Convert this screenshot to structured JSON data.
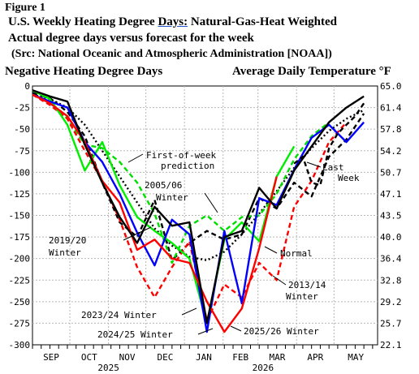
{
  "header": {
    "figure_label": "Figure 1",
    "title_line1_prefix": "U.S. Weekly Heating Degree ",
    "title_line1_days": "Days:",
    "title_line1_suffix": " Natural-Gas-Heat Weighted",
    "title_line2": "Actual degree days versus forecast for the week",
    "title_line3": "(Src: National Oceanic and Atmospheric Administration [NOAA])",
    "left_axis_title": "Negative Heating Degree Days",
    "right_axis_title": "Average Daily Temperature",
    "right_axis_unit": "°F"
  },
  "chart_data": {
    "type": "line",
    "ylim": [
      -300,
      0
    ],
    "y_ticks": [
      "0",
      "-25",
      "-50",
      "-75",
      "-100",
      "-125",
      "-150",
      "-175",
      "-200",
      "-225",
      "-250",
      "-275",
      "-300"
    ],
    "y2_ticks": [
      "65.0",
      "61.4",
      "57.8",
      "54.2",
      "50.7",
      "47.1",
      "43.5",
      "40.0",
      "36.4",
      "32.8",
      "29.2",
      "25.7",
      "22.1"
    ],
    "x_ticks": [
      "SEP",
      "OCT",
      "NOV",
      "DEC",
      "JAN",
      "FEB",
      "MAR",
      "APR",
      "MAY"
    ],
    "x_year_labels": [
      "2025",
      "2026"
    ],
    "grid": true,
    "series": [
      {
        "id": "normal",
        "color": "#000000",
        "style": "dotted",
        "x": [
          "Sep 01",
          "Sep 15",
          "Sep 29",
          "Oct 13",
          "Oct 27",
          "Nov 10",
          "Nov 24",
          "Dec 08",
          "Dec 22",
          "Jan 05",
          "Jan 19",
          "Feb 02",
          "Feb 16",
          "Mar 02",
          "Mar 16",
          "Mar 30",
          "Apr 13",
          "Apr 27",
          "May 11",
          "May 25"
        ],
        "values": [
          -10,
          -15,
          -25,
          -45,
          -75,
          -105,
          -135,
          -165,
          -185,
          -198,
          -202,
          -192,
          -172,
          -148,
          -122,
          -95,
          -72,
          -52,
          -38,
          -28
        ]
      },
      {
        "id": "2019/20 Winter",
        "color": "#000000",
        "style": "dashed",
        "x": [
          "Sep 01",
          "Sep 15",
          "Sep 29",
          "Oct 13",
          "Oct 27",
          "Nov 10",
          "Nov 24",
          "Dec 08",
          "Dec 22",
          "Jan 05",
          "Jan 19",
          "Feb 02",
          "Feb 16",
          "Mar 02",
          "Mar 16",
          "Mar 30",
          "Apr 13",
          "Apr 27",
          "May 11",
          "May 25"
        ],
        "values": [
          -8,
          -14,
          -30,
          -58,
          -112,
          -158,
          -175,
          -132,
          -202,
          -182,
          -168,
          -178,
          -172,
          -130,
          -142,
          -112,
          -128,
          -82,
          -62,
          -32
        ]
      },
      {
        "id": "2005/06 Winter",
        "color": "#00dd00",
        "style": "dashed",
        "x": [
          "Sep 01",
          "Sep 15",
          "Sep 29",
          "Oct 13",
          "Oct 27",
          "Nov 10",
          "Nov 24",
          "Dec 08",
          "Dec 22",
          "Jan 05",
          "Jan 19",
          "Feb 02",
          "Feb 16",
          "Mar 02",
          "Mar 16",
          "Mar 30",
          "Apr 13",
          "Apr 27"
        ],
        "values": [
          -10,
          -18,
          -38,
          -68,
          -72,
          -88,
          -112,
          -148,
          -205,
          -162,
          -150,
          -168,
          -152,
          -150,
          -125,
          -85,
          -58,
          -42
        ]
      },
      {
        "id": "2013/14 Winter",
        "color": "#ff0000",
        "style": "dashed",
        "x": [
          "Sep 01",
          "Sep 15",
          "Sep 29",
          "Oct 13",
          "Oct 27",
          "Nov 10",
          "Nov 24",
          "Dec 08",
          "Dec 22",
          "Jan 05",
          "Jan 19",
          "Feb 02",
          "Feb 16",
          "Mar 02",
          "Mar 16",
          "Mar 30",
          "Apr 13",
          "Apr 27",
          "May 11"
        ],
        "values": [
          -10,
          -22,
          -38,
          -75,
          -110,
          -155,
          -210,
          -245,
          -210,
          -180,
          -272,
          -230,
          -245,
          -205,
          -225,
          -140,
          -110,
          -65,
          -42
        ]
      },
      {
        "id": "2023/24 Winter",
        "color": "#00ee00",
        "style": "solid",
        "x": [
          "Sep 01",
          "Sep 15",
          "Sep 29",
          "Oct 13",
          "Oct 27",
          "Nov 10",
          "Nov 24",
          "Dec 08",
          "Dec 22",
          "Jan 05",
          "Jan 19",
          "Feb 02",
          "Feb 16",
          "Mar 02",
          "Mar 16",
          "Mar 30"
        ],
        "values": [
          -5,
          -15,
          -45,
          -98,
          -65,
          -115,
          -152,
          -168,
          -182,
          -200,
          -275,
          -178,
          -158,
          -180,
          -105,
          -70
        ]
      },
      {
        "id": "2024/25 Winter",
        "color": "#0000ff",
        "style": "solid",
        "x": [
          "Sep 01",
          "Sep 15",
          "Sep 29",
          "Oct 13",
          "Oct 27",
          "Nov 10",
          "Nov 24",
          "Dec 08",
          "Dec 22",
          "Jan 05",
          "Jan 19",
          "Feb 02",
          "Feb 16",
          "Mar 02",
          "Mar 16",
          "Mar 30",
          "Apr 13",
          "Apr 27",
          "May 11",
          "May 25"
        ],
        "values": [
          -10,
          -18,
          -25,
          -65,
          -88,
          -125,
          -170,
          -208,
          -155,
          -172,
          -285,
          -168,
          -252,
          -130,
          -138,
          -97,
          -60,
          -45,
          -65,
          -42
        ]
      },
      {
        "id": "2025/26 Winter",
        "color": "#ff0000",
        "style": "solid",
        "x": [
          "Sep 01",
          "Sep 15",
          "Sep 29",
          "Oct 13",
          "Oct 27",
          "Nov 10",
          "Nov 24",
          "Dec 08",
          "Dec 22",
          "Jan 05",
          "Jan 19",
          "Feb 02",
          "Feb 16",
          "Mar 02",
          "Mar 16"
        ],
        "values": [
          -10,
          -20,
          -35,
          -65,
          -110,
          -135,
          -190,
          -178,
          -200,
          -205,
          -250,
          -285,
          -258,
          -188,
          -105
        ]
      },
      {
        "id": "Actual (black)",
        "color": "#000000",
        "style": "solid",
        "x": [
          "Sep 01",
          "Sep 15",
          "Sep 29",
          "Oct 13",
          "Oct 27",
          "Nov 10",
          "Nov 24",
          "Dec 08",
          "Dec 22",
          "Jan 05",
          "Jan 19",
          "Feb 02",
          "Feb 16",
          "Mar 02",
          "Mar 16",
          "Mar 30",
          "Apr 13",
          "Apr 27",
          "May 11",
          "May 25"
        ],
        "values": [
          -5,
          -12,
          -18,
          -68,
          -112,
          -152,
          -182,
          -140,
          -162,
          -158,
          -275,
          -175,
          -168,
          -118,
          -142,
          -98,
          -70,
          -42,
          -25,
          -12
        ]
      },
      {
        "id": "First-of-week prediction",
        "color": "#000000",
        "style": "dashed",
        "x": [
          "Mar 30",
          "Apr 06",
          "Apr 13",
          "Apr 20",
          "Apr 27",
          "May 04",
          "May 11",
          "May 18",
          "May 25"
        ],
        "values": [
          -90,
          -82,
          -112,
          -115,
          -72,
          -55,
          -45,
          -35,
          -20
        ]
      }
    ],
    "annotations": [
      "First-of-week prediction",
      "2005/06 Winter",
      "2019/20 Winter",
      "Normal",
      "2013/14 Winter",
      "2023/24 Winter",
      "2024/25 Winter",
      "2025/26 Winter",
      "Last Week"
    ]
  }
}
